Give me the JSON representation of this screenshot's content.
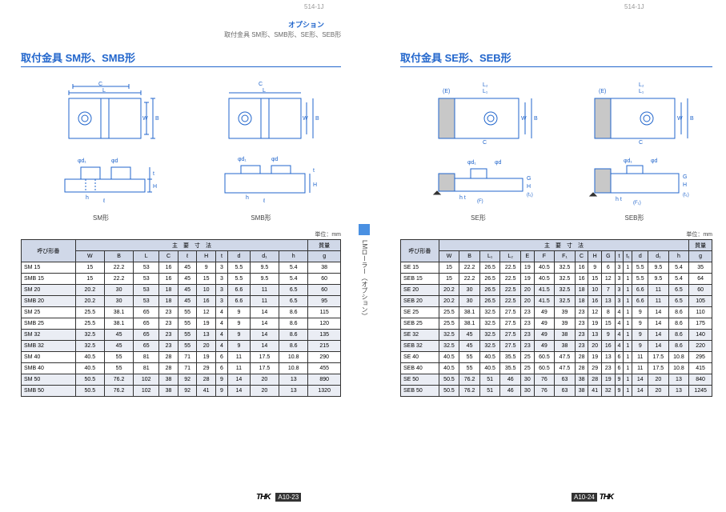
{
  "page_id": "514-1J",
  "header": {
    "option": "オプション",
    "subtitle": "取付金具 SM形、SMB形、SE形、SEB形"
  },
  "left": {
    "title": "取付金具 SM形、SMB形",
    "diag1_label": "SM形",
    "diag2_label": "SMB形",
    "unit": "単位：mm",
    "thead": {
      "model": "呼び形番",
      "main_dim": "主　要　寸　法",
      "mass": "質量"
    },
    "cols": [
      "W",
      "B",
      "L",
      "C",
      "ℓ",
      "H",
      "t",
      "d",
      "d₁",
      "h",
      "g"
    ],
    "rows": [
      [
        "SM 15",
        "15",
        "22.2",
        "53",
        "16",
        "45",
        "9",
        "3",
        "5.5",
        "9.5",
        "5.4",
        "38"
      ],
      [
        "SMB 15",
        "15",
        "22.2",
        "53",
        "16",
        "45",
        "15",
        "3",
        "5.5",
        "9.5",
        "5.4",
        "60"
      ],
      [
        "SM 20",
        "20.2",
        "30",
        "53",
        "18",
        "45",
        "10",
        "3",
        "6.6",
        "11",
        "6.5",
        "60"
      ],
      [
        "SMB 20",
        "20.2",
        "30",
        "53",
        "18",
        "45",
        "16",
        "3",
        "6.6",
        "11",
        "6.5",
        "95"
      ],
      [
        "SM 25",
        "25.5",
        "38.1",
        "65",
        "23",
        "55",
        "12",
        "4",
        "9",
        "14",
        "8.6",
        "115"
      ],
      [
        "SMB 25",
        "25.5",
        "38.1",
        "65",
        "23",
        "55",
        "19",
        "4",
        "9",
        "14",
        "8.6",
        "120"
      ],
      [
        "SM 32",
        "32.5",
        "45",
        "65",
        "23",
        "55",
        "13",
        "4",
        "9",
        "14",
        "8.6",
        "135"
      ],
      [
        "SMB 32",
        "32.5",
        "45",
        "65",
        "23",
        "55",
        "20",
        "4",
        "9",
        "14",
        "8.6",
        "215"
      ],
      [
        "SM 40",
        "40.5",
        "55",
        "81",
        "28",
        "71",
        "19",
        "6",
        "11",
        "17.5",
        "10.8",
        "290"
      ],
      [
        "SMB 40",
        "40.5",
        "55",
        "81",
        "28",
        "71",
        "29",
        "6",
        "11",
        "17.5",
        "10.8",
        "455"
      ],
      [
        "SM 50",
        "50.5",
        "76.2",
        "102",
        "38",
        "92",
        "28",
        "9",
        "14",
        "20",
        "13",
        "890"
      ],
      [
        "SMB 50",
        "50.5",
        "76.2",
        "102",
        "38",
        "92",
        "41",
        "9",
        "14",
        "20",
        "13",
        "1320"
      ]
    ]
  },
  "right": {
    "title": "取付金具 SE形、SEB形",
    "diag1_label": "SE形",
    "diag2_label": "SEB形",
    "unit": "単位：mm",
    "thead": {
      "model": "呼び形番",
      "main_dim": "主　要　寸　法",
      "mass": "質量"
    },
    "cols": [
      "W",
      "B",
      "L₁",
      "L₂",
      "E",
      "F",
      "F₁",
      "C",
      "H",
      "G",
      "t",
      "t₁",
      "d",
      "d₁",
      "h",
      "g"
    ],
    "rows": [
      [
        "SE 15",
        "15",
        "22.2",
        "26.5",
        "22.5",
        "19",
        "40.5",
        "32.5",
        "16",
        "9",
        "6",
        "3",
        "1",
        "5.5",
        "9.5",
        "5.4",
        "35"
      ],
      [
        "SEB 15",
        "15",
        "22.2",
        "26.5",
        "22.5",
        "19",
        "40.5",
        "32.5",
        "16",
        "15",
        "12",
        "3",
        "1",
        "5.5",
        "9.5",
        "5.4",
        "64"
      ],
      [
        "SE 20",
        "20.2",
        "30",
        "26.5",
        "22.5",
        "20",
        "41.5",
        "32.5",
        "18",
        "10",
        "7",
        "3",
        "1",
        "6.6",
        "11",
        "6.5",
        "60"
      ],
      [
        "SEB 20",
        "20.2",
        "30",
        "26.5",
        "22.5",
        "20",
        "41.5",
        "32.5",
        "18",
        "16",
        "13",
        "3",
        "1",
        "6.6",
        "11",
        "6.5",
        "105"
      ],
      [
        "SE 25",
        "25.5",
        "38.1",
        "32.5",
        "27.5",
        "23",
        "49",
        "39",
        "23",
        "12",
        "8",
        "4",
        "1",
        "9",
        "14",
        "8.6",
        "110"
      ],
      [
        "SEB 25",
        "25.5",
        "38.1",
        "32.5",
        "27.5",
        "23",
        "49",
        "39",
        "23",
        "19",
        "15",
        "4",
        "1",
        "9",
        "14",
        "8.6",
        "175"
      ],
      [
        "SE 32",
        "32.5",
        "45",
        "32.5",
        "27.5",
        "23",
        "49",
        "38",
        "23",
        "13",
        "9",
        "4",
        "1",
        "9",
        "14",
        "8.6",
        "140"
      ],
      [
        "SEB 32",
        "32.5",
        "45",
        "32.5",
        "27.5",
        "23",
        "49",
        "38",
        "23",
        "20",
        "16",
        "4",
        "1",
        "9",
        "14",
        "8.6",
        "220"
      ],
      [
        "SE 40",
        "40.5",
        "55",
        "40.5",
        "35.5",
        "25",
        "60.5",
        "47.5",
        "28",
        "19",
        "13",
        "6",
        "1",
        "11",
        "17.5",
        "10.8",
        "295"
      ],
      [
        "SEB 40",
        "40.5",
        "55",
        "40.5",
        "35.5",
        "25",
        "60.5",
        "47.5",
        "28",
        "29",
        "23",
        "6",
        "1",
        "11",
        "17.5",
        "10.8",
        "415"
      ],
      [
        "SE 50",
        "50.5",
        "76.2",
        "51",
        "46",
        "30",
        "76",
        "63",
        "38",
        "28",
        "19",
        "9",
        "1",
        "14",
        "20",
        "13",
        "840"
      ],
      [
        "SEB 50",
        "50.5",
        "76.2",
        "51",
        "46",
        "30",
        "76",
        "63",
        "38",
        "41",
        "32",
        "9",
        "1",
        "14",
        "20",
        "13",
        "1245"
      ]
    ]
  },
  "side_text": "LMローラー（オプション）",
  "footer": {
    "brand": "THK",
    "left_pg": "A10-23",
    "right_pg": "A10-24",
    "prefix": "A"
  },
  "diagram": {
    "stroke": "#2266cc",
    "dim_labels": {
      "L": "L",
      "C": "C",
      "W": "W",
      "B": "B",
      "phi_d1": "φd₁",
      "phi_d": "φd",
      "t": "t",
      "H": "H",
      "h": "h",
      "l": "ℓ",
      "E": "(E)",
      "L1": "L₁",
      "L2": "L₂",
      "G": "G",
      "t1": "(t₁)",
      "F": "(F)",
      "F1": "(F₁)"
    }
  }
}
